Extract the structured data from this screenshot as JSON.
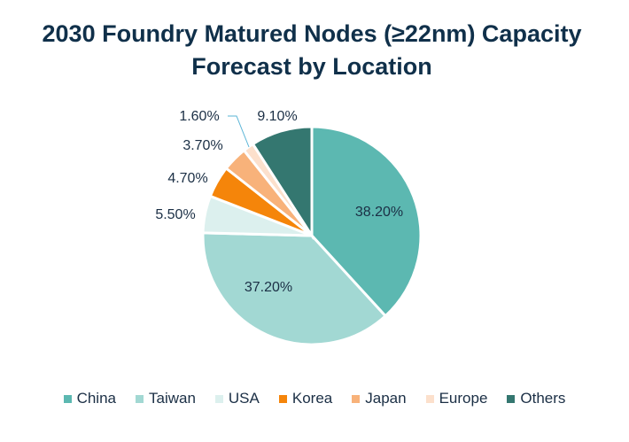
{
  "chart_data": {
    "type": "pie",
    "title": "2030 Foundry Matured Nodes (≥22nm) Capacity Forecast by Location",
    "start_angle_deg": 0,
    "direction": "clockwise",
    "categories": [
      "China",
      "Taiwan",
      "USA",
      "Korea",
      "Japan",
      "Europe",
      "Others"
    ],
    "values": [
      38.2,
      37.2,
      5.5,
      4.7,
      3.7,
      1.6,
      9.1
    ],
    "data_labels": [
      "38.20%",
      "37.20%",
      "5.50%",
      "4.70%",
      "3.70%",
      "1.60%",
      "9.10%"
    ],
    "colors": [
      "#5cb8b1",
      "#a2d8d3",
      "#dcf0ee",
      "#f5850a",
      "#f8b27a",
      "#fce0cc",
      "#347770"
    ],
    "legend_position": "bottom"
  }
}
